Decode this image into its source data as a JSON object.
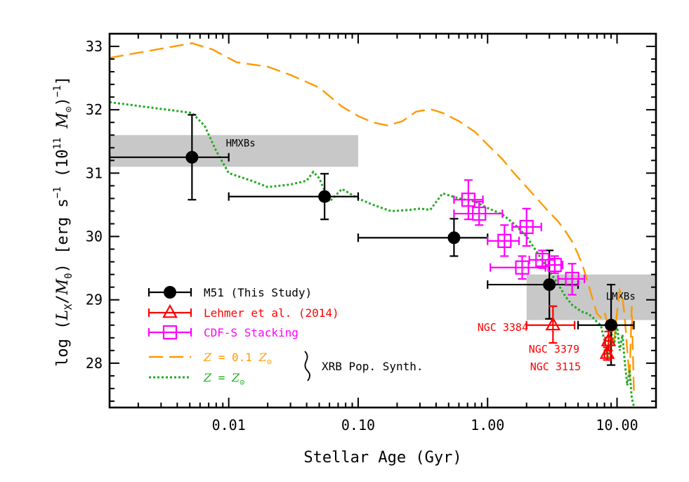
{
  "chart_data": {
    "type": "scatter",
    "xlabel": "Stellar Age (Gyr)",
    "ylabel_parts": [
      "log (",
      "L",
      "X",
      "/",
      "M",
      "0",
      ") [erg s",
      "−1",
      " (10",
      "11",
      " ",
      "M",
      "⊙",
      ")",
      "−1",
      "]"
    ],
    "xscale": "log",
    "xlim": [
      0.0012,
      20
    ],
    "ylim": [
      27.3,
      33.2
    ],
    "x_ticks": [
      0.01,
      0.1,
      1,
      10
    ],
    "x_tick_labels": [
      "0.01",
      "0.10",
      "1.00",
      "10.00"
    ],
    "y_ticks": [
      28,
      29,
      30,
      31,
      32,
      33
    ],
    "y_tick_labels": [
      "28",
      "29",
      "30",
      "31",
      "32",
      "33"
    ],
    "bands": [
      {
        "name": "HMXBs",
        "label": "HMXBs",
        "x": [
          0.0012,
          0.1
        ],
        "y": [
          31.1,
          31.6
        ]
      },
      {
        "name": "LMXBs",
        "label": "LMXBs",
        "x": [
          2.0,
          20
        ],
        "y": [
          28.68,
          29.4
        ]
      }
    ],
    "series": [
      {
        "name": "M51 (This Study)",
        "marker": "circle",
        "color": "#000000",
        "points": [
          {
            "x": 0.0052,
            "xlo": 0.0012,
            "xhi": 0.01,
            "y": 31.25,
            "ylo": 30.58,
            "yhi": 31.92
          },
          {
            "x": 0.055,
            "xlo": 0.01,
            "xhi": 0.1,
            "y": 30.63,
            "ylo": 30.27,
            "yhi": 30.99
          },
          {
            "x": 0.55,
            "xlo": 0.1,
            "xhi": 1.0,
            "y": 29.98,
            "ylo": 29.69,
            "yhi": 30.28
          },
          {
            "x": 3.0,
            "xlo": 1.0,
            "xhi": 5.0,
            "y": 29.24,
            "ylo": 28.7,
            "yhi": 29.78
          },
          {
            "x": 9.0,
            "xlo": 5.0,
            "xhi": 13.5,
            "y": 28.6,
            "ylo": 27.97,
            "yhi": 29.24
          }
        ]
      },
      {
        "name": "Lehmer et al. (2014)",
        "marker": "triangle",
        "color": "#ff0000",
        "points": [
          {
            "x": 3.2,
            "xlo": 2.0,
            "xhi": 4.7,
            "y": 28.6,
            "ylo": 28.32,
            "yhi": 28.9
          },
          {
            "x": 8.6,
            "xlo": 8.1,
            "xhi": 9.1,
            "y": 28.35,
            "ylo": 28.2,
            "yhi": 28.5
          },
          {
            "x": 8.4,
            "xlo": 8.0,
            "xhi": 8.9,
            "y": 28.15,
            "ylo": 28.05,
            "yhi": 28.25
          }
        ]
      },
      {
        "name": "CDF-S Stacking",
        "marker": "square",
        "color": "#ff00ff",
        "points": [
          {
            "x": 0.71,
            "xlo": 0.55,
            "xhi": 0.92,
            "y": 30.58,
            "ylo": 30.27,
            "yhi": 30.89
          },
          {
            "x": 0.86,
            "xlo": 0.55,
            "xhi": 1.3,
            "y": 30.36,
            "ylo": 30.18,
            "yhi": 30.55
          },
          {
            "x": 1.35,
            "xlo": 1.0,
            "xhi": 1.75,
            "y": 29.93,
            "ylo": 29.69,
            "yhi": 30.18
          },
          {
            "x": 2.0,
            "xlo": 1.55,
            "xhi": 2.6,
            "y": 30.15,
            "ylo": 29.85,
            "yhi": 30.44
          },
          {
            "x": 1.85,
            "xlo": 1.05,
            "xhi": 2.8,
            "y": 29.51,
            "ylo": 29.33,
            "yhi": 29.69
          },
          {
            "x": 2.65,
            "xlo": 2.1,
            "xhi": 3.3,
            "y": 29.63,
            "ylo": 29.5,
            "yhi": 29.78
          },
          {
            "x": 3.3,
            "xlo": 2.8,
            "xhi": 3.8,
            "y": 29.55,
            "ylo": 29.42,
            "yhi": 29.69
          },
          {
            "x": 4.5,
            "xlo": 3.5,
            "xhi": 5.6,
            "y": 29.33,
            "ylo": 29.08,
            "yhi": 29.57
          }
        ]
      }
    ],
    "curves": [
      {
        "name": "Z = 0.1 Z☉",
        "style": "dashed",
        "color": "#ff9900",
        "x": [
          0.0012,
          0.0052,
          0.0075,
          0.0115,
          0.02,
          0.03,
          0.05,
          0.075,
          0.1,
          0.13,
          0.17,
          0.22,
          0.28,
          0.36,
          0.45,
          0.6,
          0.8,
          1.0,
          1.3,
          1.6,
          2.0,
          2.5,
          3.0,
          3.5,
          4.0,
          4.5,
          5.0,
          5.5,
          6.0,
          6.5,
          7.0,
          7.5,
          8.0,
          8.5,
          9.0,
          9.5,
          10.0,
          10.5,
          11.0,
          11.5,
          12.0,
          12.5,
          13.0,
          13.5
        ],
        "y": [
          32.82,
          33.05,
          32.95,
          32.75,
          32.68,
          32.55,
          32.35,
          32.05,
          31.9,
          31.8,
          31.75,
          31.82,
          31.97,
          32.01,
          31.95,
          31.82,
          31.65,
          31.45,
          31.22,
          31.0,
          30.78,
          30.56,
          30.38,
          30.24,
          30.08,
          29.92,
          29.72,
          29.5,
          29.25,
          29.0,
          28.78,
          28.72,
          28.8,
          28.6,
          28.25,
          28.35,
          28.8,
          29.15,
          29.05,
          28.7,
          28.2,
          27.75,
          28.9,
          27.55
        ]
      },
      {
        "name": "Z = Z☉",
        "style": "dotted",
        "color": "#22aa22",
        "x": [
          0.0012,
          0.0052,
          0.0065,
          0.008,
          0.01,
          0.015,
          0.02,
          0.03,
          0.04,
          0.045,
          0.05,
          0.06,
          0.075,
          0.1,
          0.13,
          0.18,
          0.25,
          0.3,
          0.36,
          0.45,
          0.6,
          0.8,
          1.0,
          1.3,
          1.6,
          2.0,
          2.5,
          3.0,
          3.5,
          4.0,
          4.5,
          5.0,
          5.5,
          6.0,
          6.5,
          7.0,
          7.5,
          8.0,
          8.5,
          9.0,
          9.5,
          10.0,
          10.5,
          11.0,
          11.5,
          12.0,
          12.5,
          13.0,
          13.5
        ],
        "y": [
          32.12,
          31.95,
          31.75,
          31.35,
          31.0,
          30.88,
          30.78,
          30.82,
          30.88,
          31.02,
          30.92,
          30.55,
          30.75,
          30.6,
          30.5,
          30.4,
          30.42,
          30.44,
          30.42,
          30.68,
          30.6,
          30.55,
          30.45,
          30.35,
          30.2,
          30.0,
          29.7,
          29.45,
          29.25,
          29.05,
          28.92,
          28.85,
          28.8,
          28.78,
          28.72,
          28.65,
          28.6,
          28.35,
          28.1,
          28.5,
          28.3,
          28.6,
          28.2,
          28.45,
          28.0,
          27.65,
          27.9,
          27.45,
          27.32
        ]
      }
    ],
    "legend": {
      "placement": "lower-left",
      "entries": [
        {
          "label": "M51 (This Study)",
          "kind": "marker",
          "marker": "circle",
          "color": "#000000",
          "text_color": "#000000"
        },
        {
          "label": "Lehmer et al. (2014)",
          "kind": "marker",
          "marker": "triangle",
          "color": "#ff0000",
          "text_color": "#ff0000"
        },
        {
          "label": "CDF-S Stacking",
          "kind": "marker",
          "marker": "square",
          "color": "#ff00ff",
          "text_color": "#ff00ff"
        },
        {
          "label_parts": [
            "Z",
            " = 0.1 ",
            "Z",
            "⊙"
          ],
          "kind": "line",
          "style": "dashed",
          "color": "#ff9900",
          "text_color": "#ff9900"
        },
        {
          "label_parts": [
            "Z",
            " = ",
            "Z",
            "⊙"
          ],
          "kind": "line",
          "style": "dotted",
          "color": "#22aa22",
          "text_color": "#22aa22"
        }
      ],
      "group_label": "XRB Pop. Synth."
    },
    "annotations": [
      {
        "text": "NGC 3384",
        "color": "#ff0000",
        "x": 3.2,
        "y": 28.6
      },
      {
        "text": "NGC 3379",
        "color": "#ff0000",
        "x": 8.6,
        "y": 28.35
      },
      {
        "text": "NGC 3115",
        "color": "#ff0000",
        "x": 8.4,
        "y": 28.15
      }
    ]
  }
}
